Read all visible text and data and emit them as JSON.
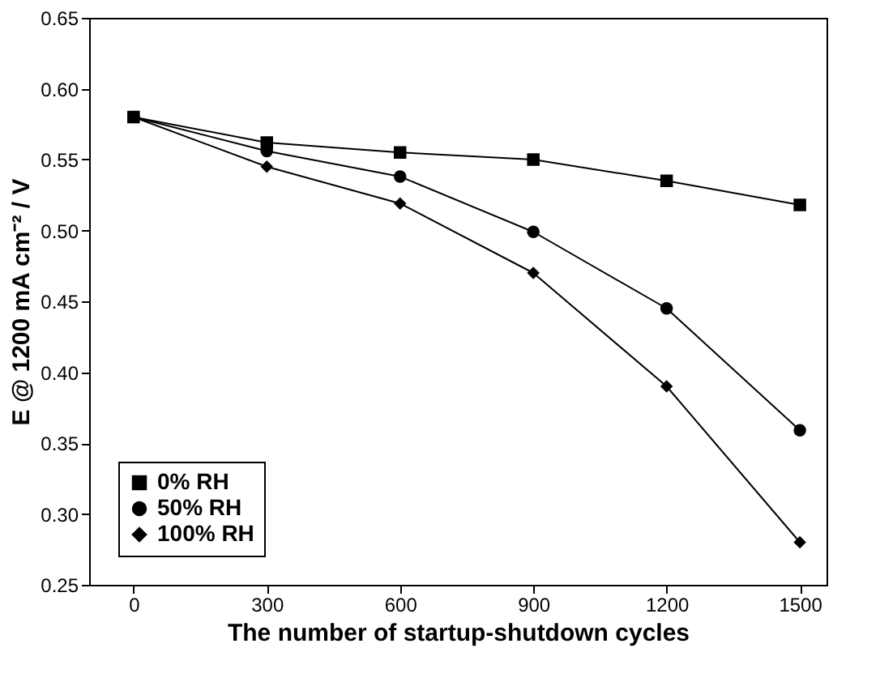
{
  "chart_data": {
    "type": "line",
    "xlabel": "The number of startup-shutdown cycles",
    "ylabel": "E @ 1200 mA cm⁻² / V",
    "x": [
      0,
      300,
      600,
      900,
      1200,
      1500
    ],
    "series": [
      {
        "name": "0% RH",
        "color": "#000000",
        "marker": "square",
        "values": [
          0.58,
          0.562,
          0.555,
          0.55,
          0.535,
          0.518
        ]
      },
      {
        "name": "50% RH",
        "color": "#000000",
        "marker": "circle",
        "values": [
          0.58,
          0.556,
          0.538,
          0.499,
          0.445,
          0.359
        ]
      },
      {
        "name": "100% RH",
        "color": "#000000",
        "marker": "diamond",
        "values": [
          0.58,
          0.545,
          0.519,
          0.47,
          0.39,
          0.28
        ]
      }
    ],
    "xlim": [
      -100,
      1560
    ],
    "xticks": [
      0,
      300,
      600,
      900,
      1200,
      1500
    ],
    "ylim": [
      0.25,
      0.65
    ],
    "yticks": [
      {
        "value": 0.25,
        "label": "0.25"
      },
      {
        "value": 0.3,
        "label": "0.30"
      },
      {
        "value": 0.35,
        "label": "0.35"
      },
      {
        "value": 0.4,
        "label": "0.40"
      },
      {
        "value": 0.45,
        "label": "0.45"
      },
      {
        "value": 0.5,
        "label": "0.50"
      },
      {
        "value": 0.55,
        "label": "0.55"
      },
      {
        "value": 0.6,
        "label": "0.60"
      },
      {
        "value": 0.65,
        "label": "0.65"
      }
    ],
    "grid": false,
    "legend": "bottom left",
    "line_style": "solid"
  }
}
